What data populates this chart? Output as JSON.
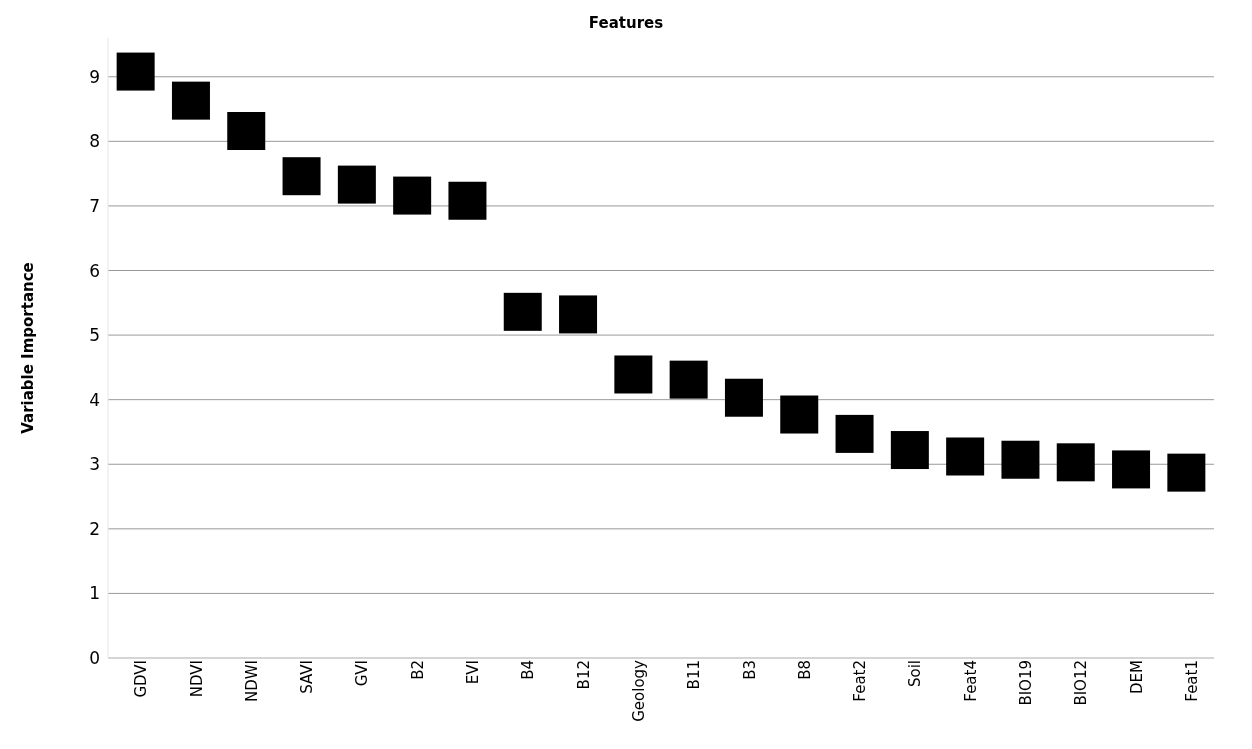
{
  "chart_data": {
    "type": "scatter",
    "title": "Features",
    "ylabel": "Variable Importance",
    "categories": [
      "GDVI",
      "NDVI",
      "NDWI",
      "SAVI",
      "GVI",
      "B2",
      "EVI",
      "B4",
      "B12",
      "Geology",
      "B11",
      "B3",
      "B8",
      "Feat2",
      "Soil",
      "Feat4",
      "BIO19",
      "BIO12",
      "DEM",
      "Feat1"
    ],
    "values": [
      9.08,
      8.63,
      8.16,
      7.46,
      7.33,
      7.16,
      7.08,
      5.36,
      5.32,
      4.39,
      4.31,
      4.03,
      3.77,
      3.47,
      3.22,
      3.12,
      3.07,
      3.03,
      2.92,
      2.87
    ],
    "color": "#000000",
    "marker": "square",
    "ylim": [
      0,
      9.6
    ],
    "yticks": [
      0,
      1,
      2,
      3,
      4,
      5,
      6,
      7,
      8,
      9
    ],
    "grid": "y"
  }
}
